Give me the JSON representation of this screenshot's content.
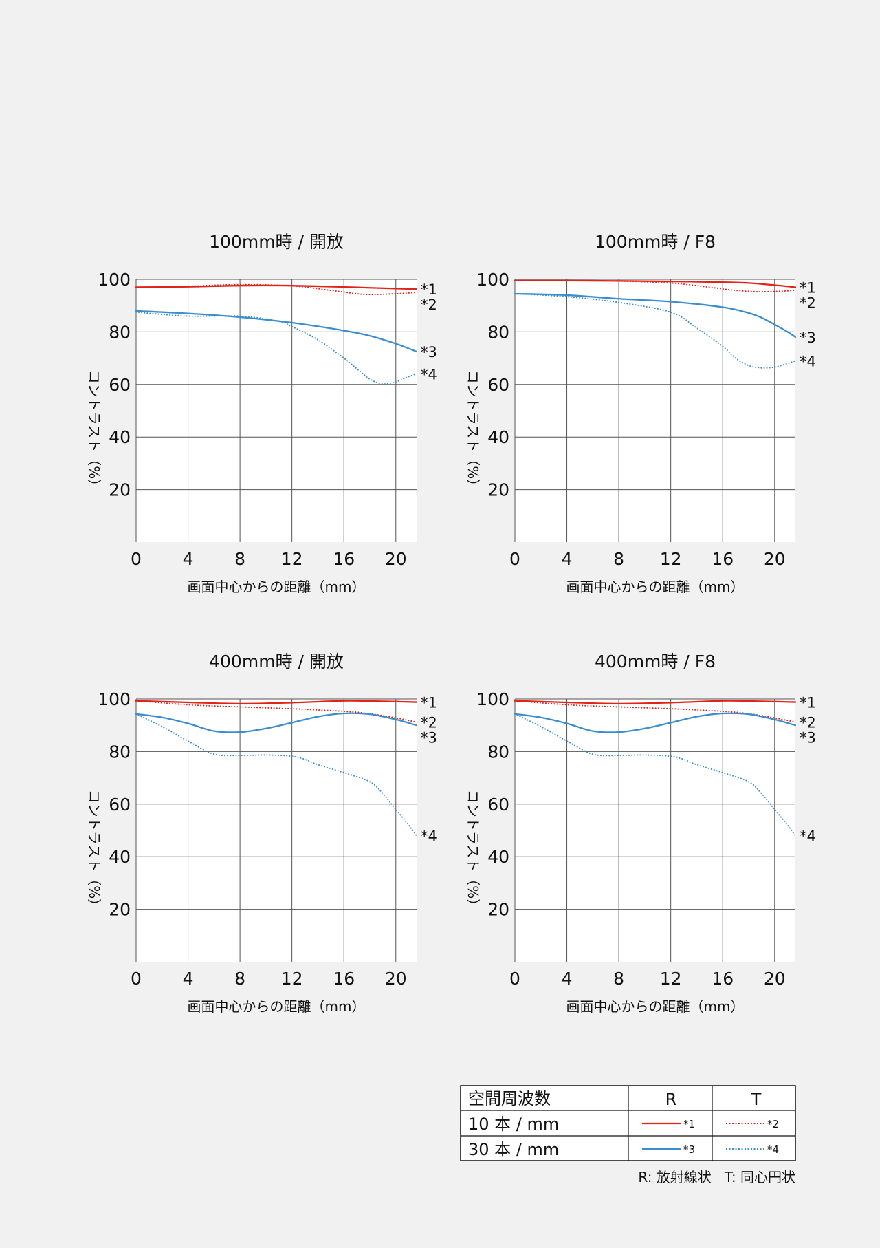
{
  "colors": {
    "red": "#e2231a",
    "blue": "#3a8ed0",
    "grid": "#555555",
    "text": "#111111",
    "background": "#f1f1f1",
    "plot_bg": "#ffffff"
  },
  "chart_data": [
    {
      "type": "line",
      "title": "100mm時 / 開放",
      "xlabel": "画面中心からの距離（mm）",
      "ylabel": "コントラスト（%）",
      "xlim": [
        0,
        21.6
      ],
      "ylim": [
        0,
        100
      ],
      "xticks": [
        0,
        4,
        8,
        12,
        16,
        20
      ],
      "yticks": [
        20,
        40,
        60,
        80,
        100
      ],
      "grid": true,
      "series": [
        {
          "name": "*1",
          "style": "solid",
          "color": "red",
          "x": [
            0,
            4,
            8,
            12,
            16,
            18,
            20,
            21.6
          ],
          "y": [
            97,
            97.2,
            97.6,
            97.6,
            97.1,
            96.8,
            96.5,
            96.3
          ]
        },
        {
          "name": "*2",
          "style": "dotted",
          "color": "red",
          "x": [
            0,
            4,
            8,
            12,
            15,
            17,
            18,
            20,
            21.6
          ],
          "y": [
            97,
            97.4,
            98,
            97.5,
            95.8,
            94.5,
            94.2,
            94.5,
            95
          ]
        },
        {
          "name": "*3",
          "style": "solid",
          "color": "blue",
          "x": [
            0,
            4,
            8,
            12,
            16,
            18,
            20,
            21.6
          ],
          "y": [
            88,
            87,
            85.6,
            83.5,
            80.5,
            78.5,
            75.5,
            72.5
          ]
        },
        {
          "name": "*4",
          "style": "dotted",
          "color": "blue",
          "x": [
            0,
            4,
            8,
            11,
            12,
            14,
            16,
            17,
            18,
            19,
            20,
            21,
            21.6
          ],
          "y": [
            87.5,
            86,
            86,
            84,
            82,
            77,
            70,
            66,
            62,
            60.2,
            61,
            63,
            64
          ]
        }
      ]
    },
    {
      "type": "line",
      "title": "100mm時 / F8",
      "xlabel": "画面中心からの距離（mm）",
      "ylabel": "コントラスト（%）",
      "xlim": [
        0,
        21.6
      ],
      "ylim": [
        0,
        100
      ],
      "xticks": [
        0,
        4,
        8,
        12,
        16,
        20
      ],
      "yticks": [
        20,
        40,
        60,
        80,
        100
      ],
      "grid": true,
      "series": [
        {
          "name": "*1",
          "style": "solid",
          "color": "red",
          "x": [
            0,
            4,
            8,
            12,
            16,
            18,
            20,
            21.6
          ],
          "y": [
            99.5,
            99.5,
            99.4,
            99.2,
            98.9,
            98.6,
            97.8,
            97
          ]
        },
        {
          "name": "*2",
          "style": "dotted",
          "color": "red",
          "x": [
            0,
            4,
            8,
            12,
            15,
            17,
            19,
            21,
            21.6
          ],
          "y": [
            99.5,
            99.5,
            99.3,
            98.6,
            97,
            95.8,
            95.3,
            95.6,
            96
          ]
        },
        {
          "name": "*3",
          "style": "solid",
          "color": "blue",
          "x": [
            0,
            4,
            8,
            12,
            16,
            18,
            19,
            20,
            21,
            21.6
          ],
          "y": [
            94.5,
            94,
            92.6,
            91.5,
            89.4,
            87.2,
            85.4,
            82.8,
            80,
            78
          ]
        },
        {
          "name": "*4",
          "style": "dotted",
          "color": "blue",
          "x": [
            0,
            4,
            8,
            12,
            14,
            16,
            17,
            18,
            19,
            20,
            21,
            21.6
          ],
          "y": [
            94.5,
            93.4,
            91.2,
            87.5,
            81.5,
            74.5,
            70,
            67.2,
            66.3,
            66.6,
            68,
            69
          ]
        }
      ]
    },
    {
      "type": "line",
      "title": "400mm時 / 開放",
      "xlabel": "画面中心からの距離（mm）",
      "ylabel": "コントラスト（%）",
      "xlim": [
        0,
        21.6
      ],
      "ylim": [
        0,
        100
      ],
      "xticks": [
        0,
        4,
        8,
        12,
        16,
        20
      ],
      "yticks": [
        20,
        40,
        60,
        80,
        100
      ],
      "grid": true,
      "series": [
        {
          "name": "*1",
          "style": "solid",
          "color": "red",
          "x": [
            0,
            4,
            8,
            12,
            16,
            18,
            20,
            21.6
          ],
          "y": [
            99.3,
            98.7,
            98.2,
            98.6,
            99.3,
            99.2,
            99,
            98.8
          ]
        },
        {
          "name": "*2",
          "style": "dotted",
          "color": "red",
          "x": [
            0,
            4,
            8,
            12,
            16,
            18,
            20,
            21.6
          ],
          "y": [
            99.3,
            97.8,
            97,
            96.3,
            95.3,
            94.4,
            92.8,
            91.2
          ]
        },
        {
          "name": "*3",
          "style": "solid",
          "color": "blue",
          "x": [
            0,
            2,
            4,
            6,
            8,
            10,
            12,
            14,
            16,
            18,
            20,
            21.6
          ],
          "y": [
            94.3,
            93,
            90.7,
            87.8,
            87.4,
            88.8,
            91,
            93.3,
            94.5,
            94.2,
            92.2,
            90
          ]
        },
        {
          "name": "*4",
          "style": "dotted",
          "color": "blue",
          "x": [
            0,
            2,
            4,
            6,
            8,
            10,
            12,
            13,
            14,
            16,
            18,
            19,
            20,
            21,
            21.6
          ],
          "y": [
            94.3,
            89.5,
            84,
            79,
            78.5,
            78.7,
            78.2,
            77,
            75,
            72,
            68.5,
            64,
            58,
            52,
            48
          ]
        }
      ]
    },
    {
      "type": "line",
      "title": "400mm時 / F8",
      "xlabel": "画面中心からの距離（mm）",
      "ylabel": "コントラスト（%）",
      "xlim": [
        0,
        21.6
      ],
      "ylim": [
        0,
        100
      ],
      "xticks": [
        0,
        4,
        8,
        12,
        16,
        20
      ],
      "yticks": [
        20,
        40,
        60,
        80,
        100
      ],
      "grid": true,
      "series": [
        {
          "name": "*1",
          "style": "solid",
          "color": "red",
          "x": [
            0,
            4,
            8,
            12,
            16,
            18,
            20,
            21.6
          ],
          "y": [
            99.3,
            98.7,
            98.2,
            98.6,
            99.3,
            99.2,
            99,
            98.8
          ]
        },
        {
          "name": "*2",
          "style": "dotted",
          "color": "red",
          "x": [
            0,
            4,
            8,
            12,
            16,
            18,
            20,
            21.6
          ],
          "y": [
            99.3,
            97.8,
            97,
            96.3,
            95.3,
            94.4,
            92.8,
            91.2
          ]
        },
        {
          "name": "*3",
          "style": "solid",
          "color": "blue",
          "x": [
            0,
            2,
            4,
            6,
            8,
            10,
            12,
            14,
            16,
            18,
            20,
            21.6
          ],
          "y": [
            94.3,
            93,
            90.7,
            87.8,
            87.4,
            88.8,
            91,
            93.3,
            94.5,
            94.2,
            92.2,
            90
          ]
        },
        {
          "name": "*4",
          "style": "dotted",
          "color": "blue",
          "x": [
            0,
            2,
            4,
            6,
            8,
            10,
            12,
            13,
            14,
            16,
            18,
            19,
            20,
            21,
            21.6
          ],
          "y": [
            94.3,
            89.5,
            84,
            79,
            78.5,
            78.7,
            78.2,
            77,
            75,
            72,
            68.5,
            64,
            58,
            52,
            48
          ]
        }
      ]
    }
  ],
  "legend_table": {
    "header": [
      "空間周波数",
      "R",
      "T"
    ],
    "rows": [
      {
        "label": "10 本 / mm",
        "R": {
          "key": "*1",
          "color": "red",
          "style": "solid"
        },
        "T": {
          "key": "*2",
          "color": "red",
          "style": "dotted"
        }
      },
      {
        "label": "30 本 / mm",
        "R": {
          "key": "*3",
          "color": "blue",
          "style": "solid"
        },
        "T": {
          "key": "*4",
          "color": "blue",
          "style": "dotted"
        }
      }
    ],
    "footnote": "R: 放射線状   T: 同心円状"
  }
}
